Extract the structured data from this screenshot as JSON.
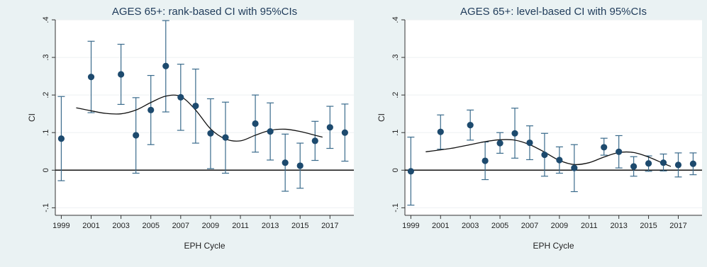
{
  "chart_data": [
    {
      "type": "scatter",
      "title": "AGES 65+: rank-based CI with 95%CIs",
      "xlabel": "EPH Cycle",
      "ylabel": "CI",
      "xlim": [
        1998.6,
        2018.6
      ],
      "ylim": [
        -0.12,
        0.4
      ],
      "xticks": [
        1999,
        2001,
        2003,
        2005,
        2007,
        2009,
        2011,
        2013,
        2015,
        2017
      ],
      "yticks": [
        -0.1,
        0,
        0.1,
        0.2,
        0.3,
        0.4
      ],
      "ytick_labels": [
        "-.1",
        "0",
        ".1",
        ".2",
        ".3",
        ".4"
      ],
      "grid": true,
      "reference_line_y": 0,
      "points": [
        {
          "x": 1999,
          "y": 0.084,
          "lo": -0.028,
          "hi": 0.196
        },
        {
          "x": 2001,
          "y": 0.248,
          "lo": 0.153,
          "hi": 0.343
        },
        {
          "x": 2003,
          "y": 0.255,
          "lo": 0.175,
          "hi": 0.335
        },
        {
          "x": 2004,
          "y": 0.093,
          "lo": -0.008,
          "hi": 0.193
        },
        {
          "x": 2005,
          "y": 0.16,
          "lo": 0.068,
          "hi": 0.252
        },
        {
          "x": 2006,
          "y": 0.277,
          "lo": 0.155,
          "hi": 0.398
        },
        {
          "x": 2007,
          "y": 0.194,
          "lo": 0.106,
          "hi": 0.282
        },
        {
          "x": 2008,
          "y": 0.171,
          "lo": 0.072,
          "hi": 0.269
        },
        {
          "x": 2009,
          "y": 0.098,
          "lo": 0.004,
          "hi": 0.19
        },
        {
          "x": 2010,
          "y": 0.087,
          "lo": -0.008,
          "hi": 0.181
        },
        {
          "x": 2012,
          "y": 0.124,
          "lo": 0.048,
          "hi": 0.2
        },
        {
          "x": 2013,
          "y": 0.103,
          "lo": 0.027,
          "hi": 0.179
        },
        {
          "x": 2014,
          "y": 0.02,
          "lo": -0.056,
          "hi": 0.096
        },
        {
          "x": 2015,
          "y": 0.012,
          "lo": -0.048,
          "hi": 0.072
        },
        {
          "x": 2016,
          "y": 0.078,
          "lo": 0.026,
          "hi": 0.13
        },
        {
          "x": 2017,
          "y": 0.114,
          "lo": 0.058,
          "hi": 0.17
        },
        {
          "x": 2018,
          "y": 0.1,
          "lo": 0.024,
          "hi": 0.176
        }
      ],
      "fit_line": [
        {
          "x": 2000,
          "y": 0.166
        },
        {
          "x": 2001,
          "y": 0.158
        },
        {
          "x": 2002,
          "y": 0.151
        },
        {
          "x": 2003,
          "y": 0.15
        },
        {
          "x": 2004,
          "y": 0.16
        },
        {
          "x": 2005,
          "y": 0.18
        },
        {
          "x": 2006,
          "y": 0.197
        },
        {
          "x": 2007,
          "y": 0.196
        },
        {
          "x": 2008,
          "y": 0.16
        },
        {
          "x": 2009,
          "y": 0.11
        },
        {
          "x": 2010,
          "y": 0.083
        },
        {
          "x": 2011,
          "y": 0.078
        },
        {
          "x": 2012,
          "y": 0.093
        },
        {
          "x": 2013,
          "y": 0.106
        },
        {
          "x": 2014,
          "y": 0.109
        },
        {
          "x": 2015,
          "y": 0.103
        },
        {
          "x": 2016,
          "y": 0.093
        },
        {
          "x": 2016.5,
          "y": 0.088
        }
      ]
    },
    {
      "type": "scatter",
      "title": "AGES 65+: level-based CI with 95%CIs",
      "xlabel": "EPH Cycle",
      "ylabel": "CI",
      "xlim": [
        1998.6,
        2018.6
      ],
      "ylim": [
        -0.12,
        0.4
      ],
      "xticks": [
        1999,
        2001,
        2003,
        2005,
        2007,
        2009,
        2011,
        2013,
        2015,
        2017
      ],
      "yticks": [
        -0.1,
        0,
        0.1,
        0.2,
        0.3,
        0.4
      ],
      "ytick_labels": [
        "-.1",
        "0",
        ".1",
        ".2",
        ".3",
        ".4"
      ],
      "grid": true,
      "reference_line_y": 0,
      "points": [
        {
          "x": 1999,
          "y": -0.003,
          "lo": -0.093,
          "hi": 0.088
        },
        {
          "x": 2001,
          "y": 0.102,
          "lo": 0.056,
          "hi": 0.147
        },
        {
          "x": 2003,
          "y": 0.12,
          "lo": 0.08,
          "hi": 0.16
        },
        {
          "x": 2004,
          "y": 0.025,
          "lo": -0.025,
          "hi": 0.075
        },
        {
          "x": 2005,
          "y": 0.072,
          "lo": 0.045,
          "hi": 0.1
        },
        {
          "x": 2006,
          "y": 0.098,
          "lo": 0.032,
          "hi": 0.165
        },
        {
          "x": 2007,
          "y": 0.073,
          "lo": 0.028,
          "hi": 0.118
        },
        {
          "x": 2008,
          "y": 0.041,
          "lo": -0.016,
          "hi": 0.098
        },
        {
          "x": 2009,
          "y": 0.027,
          "lo": -0.008,
          "hi": 0.062
        },
        {
          "x": 2010,
          "y": 0.006,
          "lo": -0.057,
          "hi": 0.068
        },
        {
          "x": 2012,
          "y": 0.061,
          "lo": 0.04,
          "hi": 0.085
        },
        {
          "x": 2013,
          "y": 0.049,
          "lo": 0.006,
          "hi": 0.092
        },
        {
          "x": 2014,
          "y": 0.01,
          "lo": -0.016,
          "hi": 0.036
        },
        {
          "x": 2015,
          "y": 0.018,
          "lo": -0.003,
          "hi": 0.038
        },
        {
          "x": 2016,
          "y": 0.02,
          "lo": -0.002,
          "hi": 0.043
        },
        {
          "x": 2017,
          "y": 0.014,
          "lo": -0.018,
          "hi": 0.046
        },
        {
          "x": 2018,
          "y": 0.017,
          "lo": -0.012,
          "hi": 0.046
        }
      ],
      "fit_line": [
        {
          "x": 2000,
          "y": 0.049
        },
        {
          "x": 2001,
          "y": 0.054
        },
        {
          "x": 2002,
          "y": 0.06
        },
        {
          "x": 2003,
          "y": 0.068
        },
        {
          "x": 2004,
          "y": 0.076
        },
        {
          "x": 2005,
          "y": 0.081
        },
        {
          "x": 2006,
          "y": 0.08
        },
        {
          "x": 2007,
          "y": 0.068
        },
        {
          "x": 2008,
          "y": 0.048
        },
        {
          "x": 2009,
          "y": 0.026
        },
        {
          "x": 2010,
          "y": 0.015
        },
        {
          "x": 2011,
          "y": 0.02
        },
        {
          "x": 2012,
          "y": 0.035
        },
        {
          "x": 2013,
          "y": 0.047
        },
        {
          "x": 2014,
          "y": 0.047
        },
        {
          "x": 2015,
          "y": 0.035
        },
        {
          "x": 2016,
          "y": 0.018
        },
        {
          "x": 2016.5,
          "y": 0.01
        }
      ]
    }
  ]
}
